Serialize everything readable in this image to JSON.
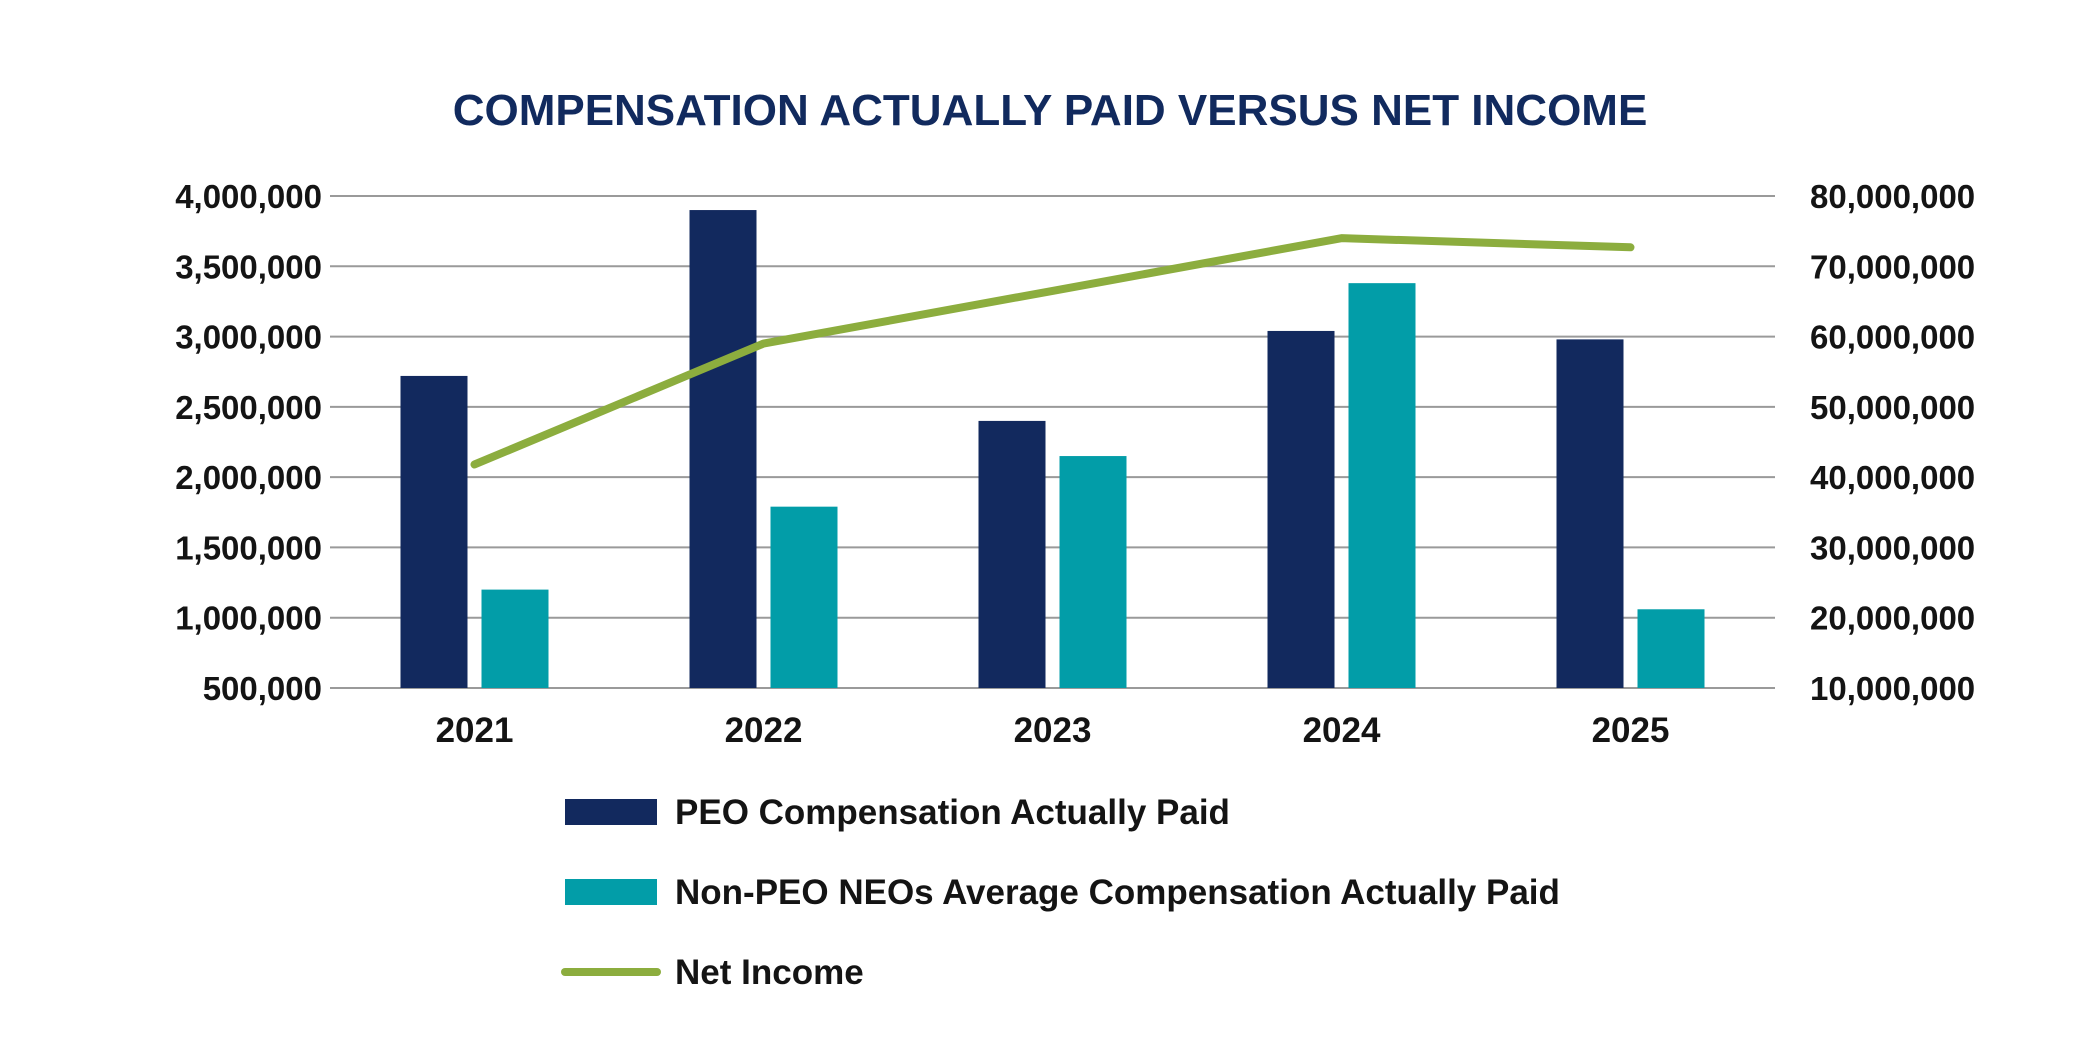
{
  "chart_data": {
    "type": "bar",
    "title": "COMPENSATION ACTUALLY PAID VERSUS NET INCOME",
    "categories": [
      "2021",
      "2022",
      "2023",
      "2024",
      "2025"
    ],
    "left_axis": {
      "ylim": [
        500000,
        4000000
      ],
      "ticks": [
        500000,
        1000000,
        1500000,
        2000000,
        2500000,
        3000000,
        3500000,
        4000000
      ],
      "tick_labels": [
        "500,000",
        "1,000,000",
        "1,500,000",
        "2,000,000",
        "2,500,000",
        "3,000,000",
        "3,500,000",
        "4,000,000"
      ]
    },
    "right_axis": {
      "ylim": [
        10000000,
        80000000
      ],
      "ticks": [
        10000000,
        20000000,
        30000000,
        40000000,
        50000000,
        60000000,
        70000000,
        80000000
      ],
      "tick_labels": [
        "10,000,000",
        "20,000,000",
        "30,000,000",
        "40,000,000",
        "50,000,000",
        "60,000,000",
        "70,000,000",
        "80,000,000"
      ]
    },
    "grid": true,
    "legend_position": "bottom",
    "series": [
      {
        "name": "PEO Compensation Actually Paid",
        "kind": "bar",
        "axis": "left",
        "color": "#12295e",
        "values": [
          2720000,
          3900000,
          2400000,
          3040000,
          2980000
        ]
      },
      {
        "name": "Non-PEO NEOs Average Compensation Actually Paid",
        "kind": "bar",
        "axis": "left",
        "color": "#029da8",
        "values": [
          1200000,
          1790000,
          2150000,
          3380000,
          1060000
        ]
      },
      {
        "name": "Net Income",
        "kind": "line",
        "axis": "right",
        "color": "#8cad3e",
        "values": [
          41800000,
          59000000,
          66500000,
          74000000,
          72700000
        ]
      }
    ]
  }
}
